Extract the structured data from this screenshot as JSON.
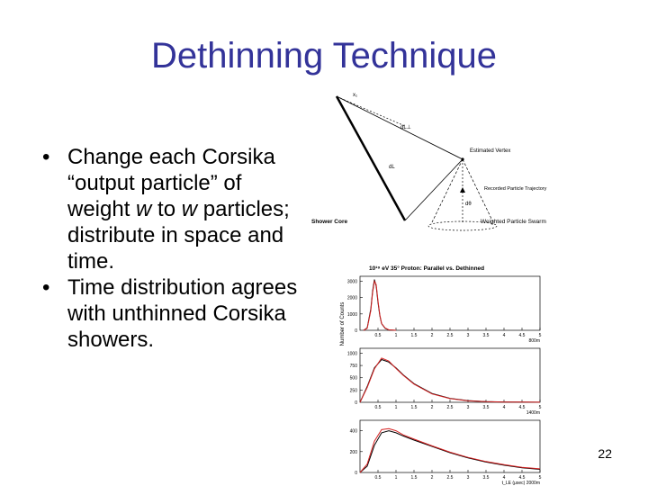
{
  "slide": {
    "title": "Dethinning Technique",
    "page_number": "22"
  },
  "bullets": [
    {
      "before": "Change each Corsika “output particle” of weight ",
      "em1": "w",
      "middle": " to ",
      "em2": "w",
      "after": " particles; distribute in space and time."
    },
    {
      "before": "Time distribution agrees with unthinned Corsika showers.",
      "em1": "",
      "middle": "",
      "em2": "",
      "after": ""
    }
  ],
  "diagram": {
    "labels": {
      "top_point": "x₁",
      "d_perp": "dL⊥",
      "estimated_vertex": "Estimated Vertex",
      "d_l": "dL",
      "recorded_particle": "Recorded Particle Trajectory",
      "d_theta": "dθ",
      "shower_core": "Shower Core",
      "weighted_swarm": "Weighted Particle Swarm"
    }
  },
  "chart_data": [
    {
      "type": "line",
      "title": "10¹⁹ eV 35° Proton: Parallel vs. Dethinned",
      "ylabel": "Number of Counts",
      "xlabel": "800m",
      "xlim": [
        0,
        5
      ],
      "ylim": [
        0,
        3300
      ],
      "yticks": [
        1000,
        2000,
        3000
      ],
      "xticks": [
        "0.5",
        "1",
        "1.5",
        "2",
        "2.5",
        "3",
        "3.5",
        "4",
        "4.5",
        "5"
      ],
      "series": [
        {
          "color": "#000000",
          "x": [
            0.1,
            0.2,
            0.3,
            0.35,
            0.4,
            0.45,
            0.5,
            0.55,
            0.6,
            0.7,
            0.8,
            1.0
          ],
          "y": [
            0,
            150,
            1300,
            2400,
            3100,
            2700,
            1700,
            900,
            400,
            120,
            20,
            0
          ]
        },
        {
          "color": "#d62222",
          "x": [
            0.1,
            0.2,
            0.3,
            0.35,
            0.4,
            0.45,
            0.5,
            0.55,
            0.6,
            0.7,
            0.8,
            1.0
          ],
          "y": [
            0,
            120,
            1200,
            2300,
            3000,
            2800,
            1800,
            950,
            420,
            140,
            30,
            0
          ]
        }
      ]
    },
    {
      "type": "line",
      "xlabel": "1400m",
      "xlim": [
        0,
        5
      ],
      "ylim": [
        0,
        1100
      ],
      "yticks": [
        250,
        500,
        750,
        1000
      ],
      "xticks": [
        "0.5",
        "1",
        "1.5",
        "2",
        "2.5",
        "3",
        "3.5",
        "4",
        "4.5",
        "5"
      ],
      "series": [
        {
          "color": "#000000",
          "x": [
            0,
            0.2,
            0.4,
            0.6,
            0.8,
            1.0,
            1.2,
            1.5,
            2.0,
            2.5,
            3.0,
            3.5,
            4.0,
            4.5,
            5.0
          ],
          "y": [
            0,
            320,
            700,
            870,
            820,
            700,
            560,
            380,
            180,
            80,
            35,
            15,
            8,
            4,
            2
          ]
        },
        {
          "color": "#d62222",
          "x": [
            0,
            0.2,
            0.4,
            0.6,
            0.8,
            1.0,
            1.2,
            1.5,
            2.0,
            2.5,
            3.0,
            3.5,
            4.0,
            4.5,
            5.0
          ],
          "y": [
            0,
            300,
            680,
            900,
            840,
            690,
            550,
            370,
            170,
            75,
            30,
            12,
            6,
            3,
            1
          ]
        }
      ]
    },
    {
      "type": "line",
      "xlabel": "t_LE (μsec) 2000m",
      "xlim": [
        0,
        5
      ],
      "ylim": [
        0,
        500
      ],
      "yticks": [
        200,
        400
      ],
      "xticks": [
        "0.5",
        "1",
        "1.5",
        "2",
        "2.5",
        "3",
        "3.5",
        "4",
        "4.5",
        "5"
      ],
      "series": [
        {
          "color": "#000000",
          "x": [
            0,
            0.2,
            0.4,
            0.6,
            0.8,
            1.0,
            1.2,
            1.5,
            2.0,
            2.5,
            3.0,
            3.5,
            4.0,
            4.5,
            5.0
          ],
          "y": [
            0,
            60,
            260,
            380,
            400,
            380,
            350,
            310,
            250,
            190,
            140,
            100,
            70,
            45,
            30
          ]
        },
        {
          "color": "#d62222",
          "x": [
            0,
            0.2,
            0.4,
            0.6,
            0.8,
            1.0,
            1.2,
            1.5,
            2.0,
            2.5,
            3.0,
            3.5,
            4.0,
            4.5,
            5.0
          ],
          "y": [
            0,
            80,
            300,
            410,
            420,
            400,
            360,
            320,
            255,
            195,
            145,
            105,
            75,
            50,
            35
          ]
        }
      ]
    }
  ]
}
